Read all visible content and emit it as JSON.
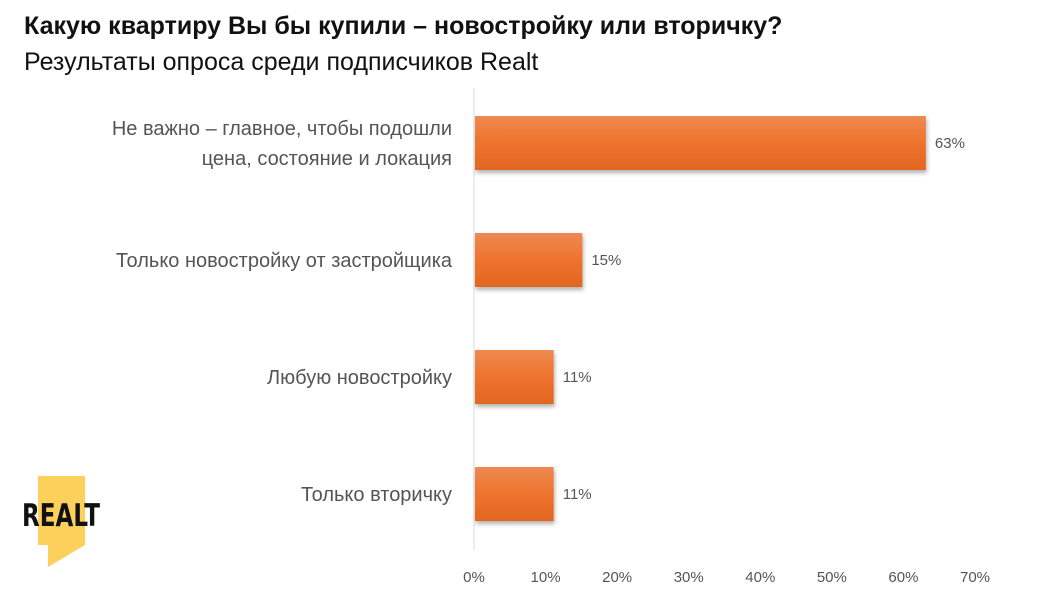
{
  "title": "Какую квартиру Вы бы купили – новостройку или вторичку?",
  "subtitle": "Результаты опроса среди подписчиков Realt",
  "logo": {
    "text": "REALT",
    "colors": {
      "shape": "#FCD05A",
      "text": "#111111"
    }
  },
  "chart_data": {
    "type": "bar",
    "orientation": "horizontal",
    "categories": [
      [
        "Не важно – главное, чтобы подошли",
        "цена, состояние и локация"
      ],
      [
        "Только новостройку от застройщика"
      ],
      [
        "Любую новостройку"
      ],
      [
        "Только вторичку"
      ]
    ],
    "values": [
      63,
      15,
      11,
      11
    ],
    "data_labels": [
      "63%",
      "15%",
      "11%",
      "11%"
    ],
    "xlim": [
      0,
      70
    ],
    "xticks": [
      "0%",
      "10%",
      "20%",
      "30%",
      "40%",
      "50%",
      "60%",
      "70%"
    ],
    "grid": false,
    "bar_color": "#EE7430"
  }
}
